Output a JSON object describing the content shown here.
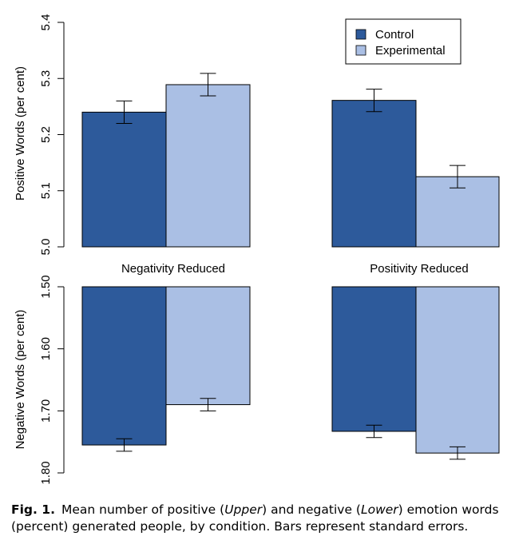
{
  "colors": {
    "control": "#2d5a9b",
    "experimental": "#aabfe4",
    "axis": "#000000"
  },
  "legend": [
    {
      "label": "Control",
      "color": "#2d5a9b"
    },
    {
      "label": "Experimental",
      "color": "#aabfe4"
    }
  ],
  "caption": {
    "label": "Fig. 1.",
    "t1": "Mean number of positive (",
    "upper": "Upper",
    "t2": ") and negative (",
    "lower": "Lower",
    "t3": ") emotion words (percent) generated people, by condition. Bars represent standard errors."
  },
  "chart_data": [
    {
      "type": "bar",
      "title": "",
      "ylabel": "Positive Words (per cent)",
      "ylim": [
        5.0,
        5.4
      ],
      "yticks": [
        5.0,
        5.1,
        5.2,
        5.3,
        5.4
      ],
      "ytick_labels": [
        "5.0",
        "5.1",
        "5.2",
        "5.3",
        "5.4"
      ],
      "categories": [
        "Negativity Reduced",
        "Positivity Reduced"
      ],
      "legend_position": "top-right",
      "series": [
        {
          "name": "Control",
          "values": [
            5.24,
            5.261
          ],
          "errors": [
            0.02,
            0.02
          ]
        },
        {
          "name": "Experimental",
          "values": [
            5.289,
            5.125
          ],
          "errors": [
            0.02,
            0.02
          ]
        }
      ]
    },
    {
      "type": "bar",
      "title": "",
      "ylabel": "Negative Words (per cent)",
      "ylim": [
        1.5,
        1.8
      ],
      "inverted_y": true,
      "yticks": [
        1.5,
        1.6,
        1.7,
        1.8
      ],
      "ytick_labels": [
        "1.50",
        "1.60",
        "1.70",
        "1.80"
      ],
      "categories": [
        "Negativity Reduced",
        "Positivity Reduced"
      ],
      "series": [
        {
          "name": "Control",
          "values": [
            1.755,
            1.733
          ],
          "errors": [
            0.01,
            0.01
          ]
        },
        {
          "name": "Experimental",
          "values": [
            1.69,
            1.768
          ],
          "errors": [
            0.01,
            0.01
          ]
        }
      ]
    }
  ]
}
